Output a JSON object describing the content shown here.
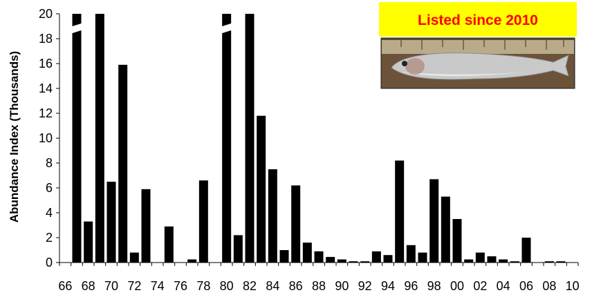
{
  "chart_data": {
    "type": "bar",
    "title": "",
    "xlabel": "",
    "ylabel": "Abundance Index  (Thousands)",
    "ylim": [
      0,
      20
    ],
    "yticks": [
      0,
      2,
      4,
      6,
      8,
      10,
      12,
      14,
      16,
      18,
      20
    ],
    "grid": false,
    "categories": [
      "66",
      "67",
      "68",
      "69",
      "70",
      "71",
      "72",
      "73",
      "74",
      "75",
      "76",
      "77",
      "78",
      "79",
      "80",
      "81",
      "82",
      "83",
      "84",
      "85",
      "86",
      "87",
      "88",
      "89",
      "90",
      "91",
      "92",
      "93",
      "94",
      "95",
      "96",
      "97",
      "98",
      "99",
      "00",
      "01",
      "02",
      "03",
      "04",
      "05",
      "06",
      "07",
      "08",
      "09",
      "10"
    ],
    "xtick_labels": [
      "66",
      "68",
      "70",
      "72",
      "74",
      "76",
      "78",
      "80",
      "82",
      "84",
      "86",
      "88",
      "90",
      "92",
      "94",
      "96",
      "98",
      "00",
      "02",
      "04",
      "06",
      "08",
      "10"
    ],
    "values": [
      null,
      20,
      3.3,
      20,
      6.5,
      15.9,
      0.8,
      5.9,
      0,
      2.9,
      0,
      0.25,
      6.6,
      0,
      20,
      2.2,
      20,
      11.8,
      7.5,
      1.0,
      6.2,
      1.6,
      0.9,
      0.45,
      0.25,
      0.1,
      0.1,
      0.9,
      0.6,
      8.2,
      1.4,
      0.8,
      6.7,
      5.3,
      3.5,
      0.25,
      0.8,
      0.5,
      0.25,
      0.1,
      2.0,
      0,
      0.1,
      0.1,
      null
    ],
    "truncated_categories": [
      "67",
      "69",
      "80",
      "82"
    ],
    "axis_break_categories": [
      "67",
      "80"
    ],
    "bar_color": "#000000",
    "annotation": {
      "text": "Listed since 2010",
      "text_color": "#ff0000",
      "background_color": "#ffff00",
      "photo": "fish-photo"
    }
  }
}
